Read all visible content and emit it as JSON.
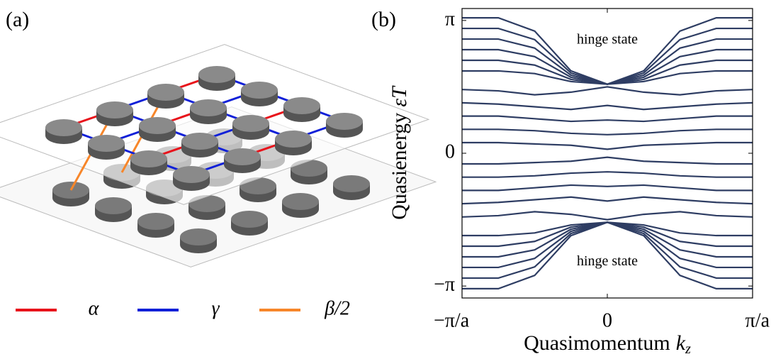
{
  "panel_labels": [
    "(a)",
    "(b)"
  ],
  "legend": [
    {
      "label": "α",
      "color": "#e8131b"
    },
    {
      "label": "γ",
      "color": "#1020d8"
    },
    {
      "label": "β/2",
      "color": "#f7862a"
    }
  ],
  "chart_data": {
    "type": "line",
    "xlabel": "Quasimomentum",
    "xlabel_symbol": "k",
    "xlabel_subscript": "z",
    "ylabel": "Quasienergy",
    "ylabel_symbol": "εT",
    "xlim": [
      -1,
      1
    ],
    "ylim": [
      -1.09,
      1.09
    ],
    "xticks": [
      {
        "value": -1,
        "label": "−π/a"
      },
      0,
      {
        "value": 1,
        "label": "π/a"
      }
    ],
    "yticks": [
      {
        "value": -1,
        "label": "−π"
      },
      0,
      {
        "value": 1,
        "label": "π"
      }
    ],
    "annotations": [
      {
        "text": "hinge state",
        "x": 0,
        "y": 0.85
      },
      {
        "text": "hinge state",
        "x": 0,
        "y": -0.82
      }
    ],
    "x": [
      -1,
      -0.75,
      -0.5,
      -0.25,
      0,
      0.25,
      0.5,
      0.75,
      1
    ],
    "series": [
      {
        "color": "#2e3d63",
        "values": [
          0.62,
          0.62,
          0.6,
          0.54,
          0.52,
          0.54,
          0.6,
          0.62,
          0.62
        ]
      },
      {
        "color": "#2e3d63",
        "values": [
          0.7,
          0.7,
          0.664,
          0.556,
          0.52,
          0.556,
          0.664,
          0.7,
          0.7
        ]
      },
      {
        "color": "#2e3d63",
        "values": [
          0.78,
          0.78,
          0.728,
          0.572,
          0.52,
          0.572,
          0.728,
          0.78,
          0.78
        ]
      },
      {
        "color": "#2e3d63",
        "values": [
          0.86,
          0.86,
          0.792,
          0.588,
          0.52,
          0.588,
          0.792,
          0.86,
          0.86
        ]
      },
      {
        "color": "#2e3d63",
        "values": [
          0.94,
          0.94,
          0.856,
          0.604,
          0.52,
          0.604,
          0.856,
          0.94,
          0.94
        ]
      },
      {
        "color": "#2e3d63",
        "values": [
          1.02,
          1.02,
          0.92,
          0.62,
          0.52,
          0.62,
          0.92,
          1.02,
          1.02
        ]
      },
      {
        "color": "#2e3d63",
        "values": [
          -0.62,
          -0.62,
          -0.6,
          -0.54,
          -0.52,
          -0.54,
          -0.6,
          -0.62,
          -0.62
        ]
      },
      {
        "color": "#2e3d63",
        "values": [
          -0.7,
          -0.7,
          -0.664,
          -0.556,
          -0.52,
          -0.556,
          -0.664,
          -0.7,
          -0.7
        ]
      },
      {
        "color": "#2e3d63",
        "values": [
          -0.78,
          -0.78,
          -0.728,
          -0.572,
          -0.52,
          -0.572,
          -0.728,
          -0.78,
          -0.78
        ]
      },
      {
        "color": "#2e3d63",
        "values": [
          -0.86,
          -0.86,
          -0.792,
          -0.588,
          -0.52,
          -0.588,
          -0.792,
          -0.86,
          -0.86
        ]
      },
      {
        "color": "#2e3d63",
        "values": [
          -0.94,
          -0.94,
          -0.856,
          -0.604,
          -0.52,
          -0.604,
          -0.856,
          -0.94,
          -0.94
        ]
      },
      {
        "color": "#2e3d63",
        "values": [
          -1.02,
          -1.02,
          -0.92,
          -0.62,
          -0.52,
          -0.62,
          -0.92,
          -1.02,
          -1.02
        ]
      },
      {
        "color": "#2e3d63",
        "values": [
          0.48,
          0.47,
          0.44,
          0.46,
          0.5,
          0.46,
          0.44,
          0.47,
          0.48
        ]
      },
      {
        "color": "#2e3d63",
        "values": [
          0.38,
          0.37,
          0.35,
          0.33,
          0.36,
          0.33,
          0.35,
          0.37,
          0.38
        ]
      },
      {
        "color": "#2e3d63",
        "values": [
          0.28,
          0.28,
          0.26,
          0.24,
          0.25,
          0.24,
          0.26,
          0.28,
          0.28
        ]
      },
      {
        "color": "#2e3d63",
        "values": [
          0.18,
          0.18,
          0.17,
          0.15,
          0.14,
          0.15,
          0.17,
          0.18,
          0.18
        ]
      },
      {
        "color": "#2e3d63",
        "values": [
          0.08,
          0.08,
          0.07,
          0.06,
          0.03,
          0.06,
          0.07,
          0.08,
          0.08
        ]
      },
      {
        "color": "#2e3d63",
        "values": [
          -0.08,
          -0.08,
          -0.07,
          -0.06,
          -0.03,
          -0.06,
          -0.07,
          -0.08,
          -0.08
        ]
      },
      {
        "color": "#2e3d63",
        "values": [
          -0.18,
          -0.18,
          -0.17,
          -0.15,
          -0.14,
          -0.15,
          -0.17,
          -0.18,
          -0.18
        ]
      },
      {
        "color": "#2e3d63",
        "values": [
          -0.28,
          -0.28,
          -0.26,
          -0.24,
          -0.25,
          -0.24,
          -0.26,
          -0.28,
          -0.28
        ]
      },
      {
        "color": "#2e3d63",
        "values": [
          -0.38,
          -0.37,
          -0.35,
          -0.33,
          -0.36,
          -0.33,
          -0.35,
          -0.37,
          -0.38
        ]
      },
      {
        "color": "#2e3d63",
        "values": [
          -0.48,
          -0.47,
          -0.44,
          -0.46,
          -0.5,
          -0.46,
          -0.44,
          -0.47,
          -0.48
        ]
      }
    ]
  }
}
